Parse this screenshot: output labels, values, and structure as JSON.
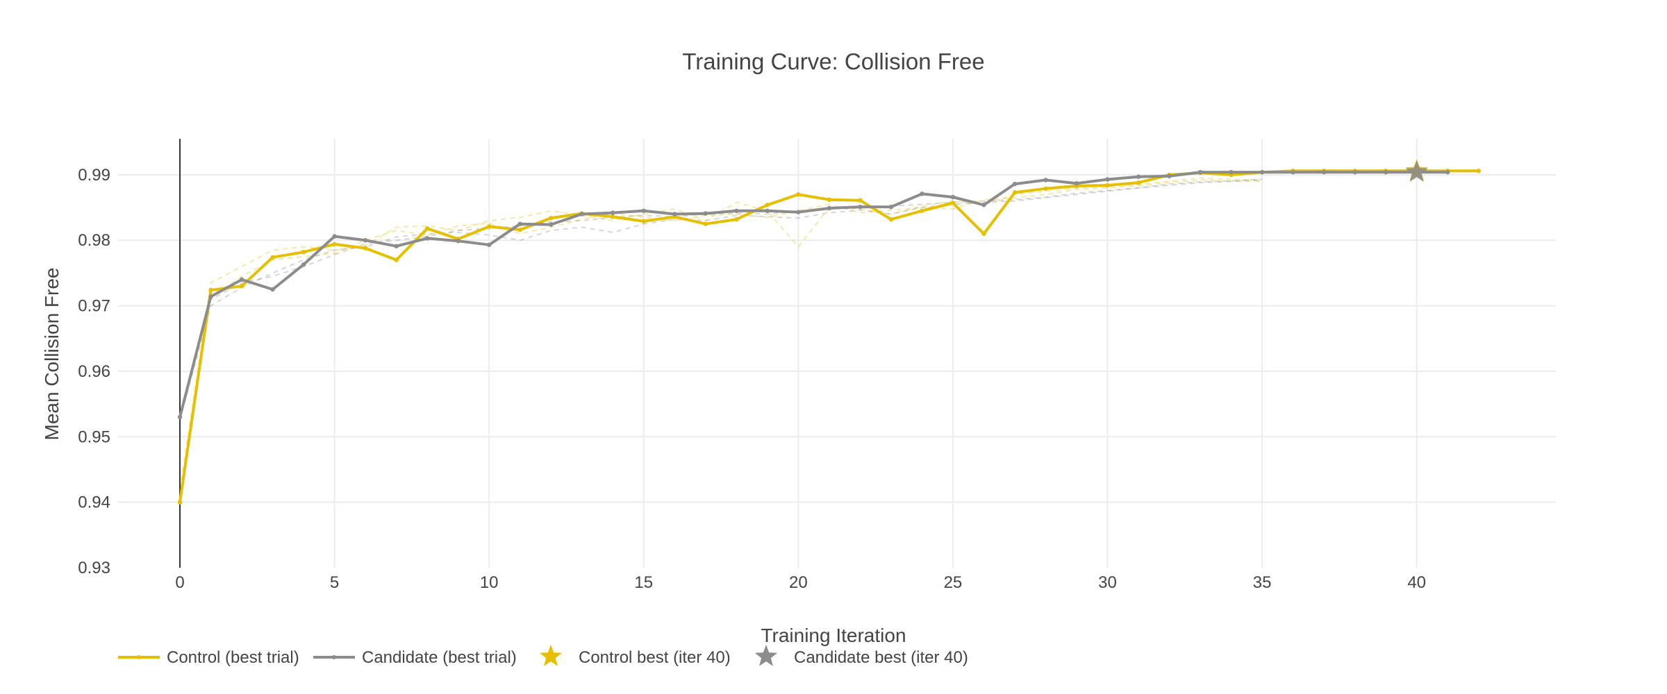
{
  "chart_data": {
    "type": "line",
    "title": "Training Curve: Collision Free",
    "xlabel": "Training Iteration",
    "ylabel": "Mean Collision Free",
    "xlim": [
      -2,
      44.5
    ],
    "ylim": [
      0.93,
      0.9955
    ],
    "xticks": [
      0,
      5,
      10,
      15,
      20,
      25,
      30,
      35,
      40
    ],
    "yticks": [
      0.93,
      0.94,
      0.95,
      0.96,
      0.97,
      0.98,
      0.99
    ],
    "grid": true,
    "legend_position": "bottom-left",
    "colors": {
      "control": "#e6bf00",
      "candidate": "#8c8c8c",
      "grid": "#ececec",
      "axis": "#333333",
      "text": "#444444"
    },
    "series": [
      {
        "name": "Control (best trial)",
        "key": "control",
        "x": [
          0,
          1,
          2,
          3,
          4,
          5,
          6,
          7,
          8,
          9,
          10,
          11,
          12,
          13,
          14,
          15,
          16,
          17,
          18,
          19,
          20,
          21,
          22,
          23,
          24,
          25,
          26,
          27,
          28,
          29,
          30,
          31,
          32,
          33,
          34,
          35,
          36,
          37,
          38,
          39,
          40,
          41,
          42
        ],
        "y": [
          0.94,
          0.9724,
          0.973,
          0.9774,
          0.9782,
          0.9794,
          0.9788,
          0.977,
          0.9818,
          0.9802,
          0.9821,
          0.9816,
          0.9834,
          0.9841,
          0.9836,
          0.9829,
          0.9836,
          0.9825,
          0.9832,
          0.9854,
          0.987,
          0.9862,
          0.9861,
          0.9832,
          0.9845,
          0.9857,
          0.981,
          0.9873,
          0.9879,
          0.9883,
          0.9884,
          0.9888,
          0.99,
          0.9903,
          0.99,
          0.9904,
          0.9906,
          0.9906,
          0.9906,
          0.9906,
          0.9906,
          0.9906,
          0.9906
        ]
      },
      {
        "name": "Candidate (best trial)",
        "key": "candidate",
        "x": [
          0,
          1,
          2,
          3,
          4,
          5,
          6,
          7,
          8,
          9,
          10,
          11,
          12,
          13,
          14,
          15,
          16,
          17,
          18,
          19,
          20,
          21,
          22,
          23,
          24,
          25,
          26,
          27,
          28,
          29,
          30,
          31,
          32,
          33,
          34,
          35,
          36,
          37,
          38,
          39,
          40,
          41
        ],
        "y": [
          0.953,
          0.9714,
          0.974,
          0.9725,
          0.9763,
          0.9806,
          0.98,
          0.9791,
          0.9803,
          0.9799,
          0.9793,
          0.9825,
          0.9824,
          0.984,
          0.9842,
          0.9845,
          0.984,
          0.9841,
          0.9845,
          0.9845,
          0.9843,
          0.9849,
          0.9851,
          0.9851,
          0.9871,
          0.9866,
          0.9854,
          0.9886,
          0.9892,
          0.9887,
          0.9893,
          0.9897,
          0.9898,
          0.9904,
          0.9904,
          0.9904,
          0.9904,
          0.9904,
          0.9904,
          0.9904,
          0.9904,
          0.9904
        ]
      }
    ],
    "faint_trials": [
      {
        "key": "control",
        "x": [
          0,
          1,
          2,
          3,
          4,
          5,
          6,
          7,
          8,
          9,
          10,
          11,
          12,
          13,
          14,
          15,
          16,
          17,
          18,
          19,
          20,
          21,
          22,
          23,
          24,
          25,
          26,
          27,
          28,
          29,
          30,
          31,
          32,
          33,
          34,
          35
        ],
        "y": [
          0.942,
          0.9735,
          0.976,
          0.9785,
          0.979,
          0.9785,
          0.9792,
          0.982,
          0.9822,
          0.9815,
          0.983,
          0.9835,
          0.9845,
          0.9838,
          0.983,
          0.984,
          0.9848,
          0.983,
          0.9858,
          0.9845,
          0.979,
          0.985,
          0.9848,
          0.984,
          0.9852,
          0.986,
          0.9855,
          0.987,
          0.9875,
          0.988,
          0.9882,
          0.9885,
          0.989,
          0.9895,
          0.9893,
          0.9892
        ]
      },
      {
        "key": "control",
        "x": [
          0,
          1,
          2,
          3,
          4,
          5,
          6,
          7,
          8,
          9,
          10,
          11,
          12,
          13,
          14,
          15,
          16,
          17,
          18,
          19,
          20,
          21,
          22,
          23,
          24,
          25,
          26,
          27,
          28,
          29,
          30,
          31,
          32,
          33,
          34,
          35
        ],
        "y": [
          0.941,
          0.9715,
          0.9745,
          0.977,
          0.9775,
          0.978,
          0.98,
          0.9815,
          0.9808,
          0.9822,
          0.9826,
          0.981,
          0.982,
          0.9832,
          0.9842,
          0.9835,
          0.983,
          0.9838,
          0.984,
          0.9835,
          0.9845,
          0.9855,
          0.9842,
          0.9846,
          0.985,
          0.9848,
          0.9862,
          0.9865,
          0.987,
          0.9878,
          0.988,
          0.9883,
          0.9888,
          0.9892,
          0.989,
          0.989
        ]
      },
      {
        "key": "candidate",
        "x": [
          0,
          1,
          2,
          3,
          4,
          5,
          6,
          7,
          8,
          9,
          10,
          11,
          12,
          13,
          14,
          15,
          16,
          17,
          18,
          19,
          20,
          21,
          22,
          23,
          24,
          25,
          26,
          27,
          28,
          29,
          30,
          31,
          32,
          33,
          34,
          35
        ],
        "y": [
          0.9525,
          0.97,
          0.9728,
          0.975,
          0.977,
          0.9785,
          0.979,
          0.9805,
          0.981,
          0.9812,
          0.9808,
          0.98,
          0.9815,
          0.982,
          0.9812,
          0.9825,
          0.9832,
          0.983,
          0.9838,
          0.9836,
          0.9834,
          0.9842,
          0.9846,
          0.984,
          0.985,
          0.9855,
          0.9858,
          0.986,
          0.9865,
          0.987,
          0.9875,
          0.988,
          0.9884,
          0.9888,
          0.989,
          0.9892
        ]
      },
      {
        "key": "candidate",
        "x": [
          0,
          1,
          2,
          3,
          4,
          5,
          6,
          7,
          8,
          9,
          10,
          11,
          12,
          13,
          14,
          15,
          16,
          17,
          18,
          19,
          20,
          21,
          22,
          23,
          24,
          25,
          26,
          27,
          28,
          29,
          30,
          31,
          32,
          33,
          34,
          35
        ],
        "y": [
          0.9532,
          0.971,
          0.9735,
          0.9745,
          0.976,
          0.9778,
          0.9795,
          0.98,
          0.9806,
          0.9815,
          0.9818,
          0.9822,
          0.9828,
          0.983,
          0.9835,
          0.9838,
          0.9836,
          0.984,
          0.9842,
          0.984,
          0.9845,
          0.9848,
          0.985,
          0.9852,
          0.9855,
          0.9858,
          0.986,
          0.9862,
          0.9866,
          0.9872,
          0.9876,
          0.988,
          0.9886,
          0.9889,
          0.9891,
          0.9893
        ]
      }
    ],
    "best_markers": [
      {
        "name": "Control best (iter 40)",
        "key": "control",
        "x": 40,
        "y": 0.9906
      },
      {
        "name": "Candidate best (iter 40)",
        "key": "candidate",
        "x": 40,
        "y": 0.9904
      }
    ]
  }
}
